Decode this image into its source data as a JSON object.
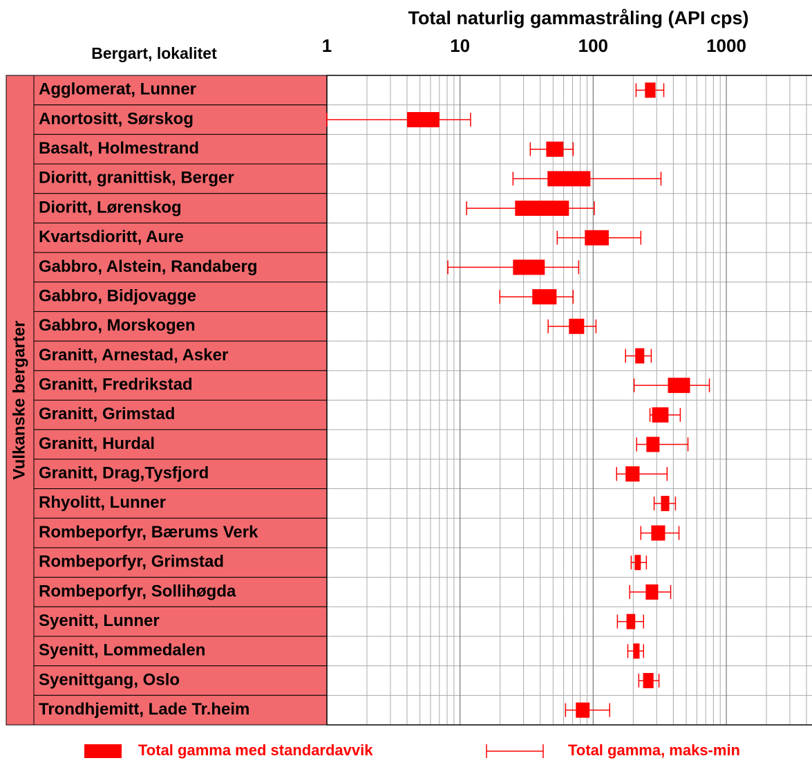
{
  "chart_data": {
    "type": "range",
    "title": "Total naturlig gammastråling (API cps)",
    "category_header": "Bergart,  lokalitet",
    "group": "Vulkanske bergarter",
    "categories": [
      "Agglomerat, Lunner",
      "Anortositt, Sørskog",
      "Basalt, Holmestrand",
      "Dioritt, granittisk, Berger",
      "Dioritt, Lørenskog",
      "Kvartsdioritt, Aure",
      "Gabbro, Alstein, Randaberg",
      "Gabbro, Bidjovagge",
      "Gabbro, Morskogen",
      "Granitt, Arnestad, Asker",
      "Granitt, Fredrikstad",
      "Granitt, Grimstad",
      "Granitt, Hurdal",
      "Granitt, Drag,Tysfjord",
      "Rhyolitt, Lunner",
      "Rombeporfyr, Bærums Verk",
      "Rombeporfyr, Grimstad",
      "Rombeporfyr, Sollihøgda",
      "Syenitt, Lunner",
      "Syenitt, Lommedalen",
      "Syenittgang, Oslo",
      "Trondhjemitt, Lade Tr.heim"
    ],
    "series": [
      {
        "name": "Total gamma med standardavvik",
        "color": "#ff0000",
        "low": [
          245,
          4.0,
          44.4,
          45.4,
          25.9,
          86.6,
          25,
          34.9,
          65.8,
          207,
          364,
          277,
          251,
          175,
          323,
          273,
          205,
          248,
          178,
          200,
          237,
          74.1
        ],
        "high": [
          294,
          7.0,
          59.8,
          95.3,
          65.8,
          131,
          43.3,
          53.1,
          85.6,
          242,
          534,
          368,
          315,
          223,
          373,
          347,
          228,
          308,
          207,
          223,
          284,
          94
        ]
      },
      {
        "name": "Total gamma, maks-min",
        "color": "#ff0000",
        "low": [
          210,
          1,
          33.7,
          25,
          11.2,
          53.7,
          8.1,
          19.9,
          45.9,
          175,
          203,
          267,
          212,
          150,
          287,
          228,
          193,
          188,
          152,
          182,
          220,
          62
        ],
        "high": [
          339,
          12,
          70.7,
          323,
          102,
          228,
          77.8,
          70.7,
          105,
          273,
          746,
          451,
          515,
          359,
          415,
          441,
          251,
          382,
          239,
          239,
          312,
          133
        ]
      }
    ],
    "xlim": [
      1,
      4400
    ],
    "xticks": [
      1,
      10,
      100,
      1000
    ],
    "log_x": true,
    "grid": true,
    "minor_grid": true,
    "label_color": "#f26a6e"
  }
}
